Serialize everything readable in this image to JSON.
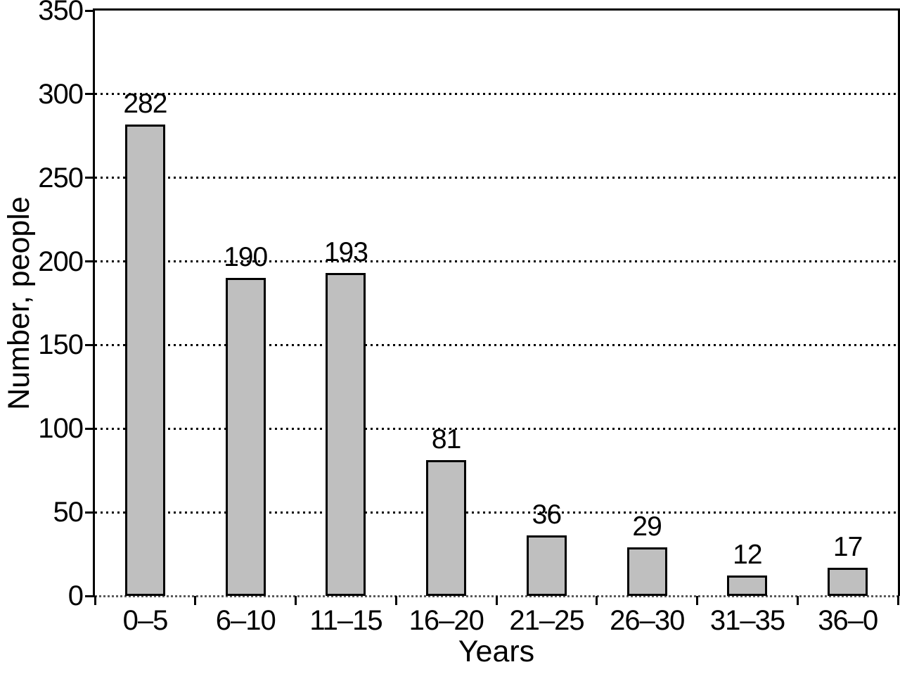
{
  "chart_data": {
    "type": "bar",
    "title": "",
    "xlabel": "Years",
    "ylabel": "Number, people",
    "categories": [
      "0–5",
      "6–10",
      "11–15",
      "16–20",
      "21–25",
      "26–30",
      "31–35",
      "36–0"
    ],
    "values": [
      282,
      190,
      193,
      81,
      36,
      29,
      12,
      17
    ],
    "value_labels_shown": true,
    "ylim": [
      0,
      350
    ],
    "yticks": [
      0,
      50,
      100,
      150,
      200,
      250,
      300,
      350
    ],
    "gridlines": [
      50,
      100,
      150,
      200,
      250,
      300
    ],
    "grid_style": "dotted-horizontal",
    "legend": "none",
    "colors": {
      "bar_fill": "#bfbfbf",
      "bar_border": "#000000",
      "axis": "#000000",
      "text": "#000000",
      "baseline_dots": "#5a5a5a",
      "background": "#ffffff"
    }
  }
}
